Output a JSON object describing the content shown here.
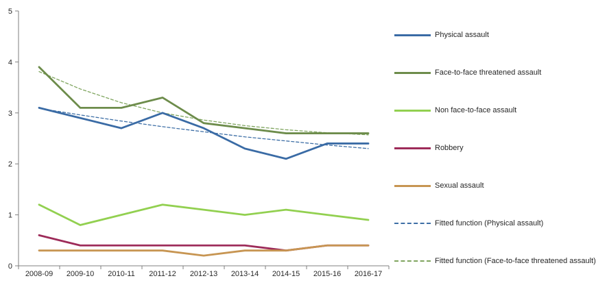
{
  "chart_data": {
    "type": "line",
    "title": "",
    "xlabel": "",
    "ylabel": "",
    "grid": false,
    "legend_position": "right",
    "ylim": [
      0,
      5
    ],
    "yticks": [
      0,
      1,
      2,
      3,
      4,
      5
    ],
    "y_tick_labels": [
      "0",
      "1",
      "2",
      "3",
      "4",
      "5"
    ],
    "categories": [
      "2008-09",
      "2009-10",
      "2010-11",
      "2011-12",
      "2012-13",
      "2013-14",
      "2014-15",
      "2015-16",
      "2016-17"
    ],
    "series": [
      {
        "name": "Physical assault",
        "key": "physical-assault",
        "style": "solid",
        "color": "#3A6BA5",
        "values": [
          3.1,
          2.9,
          2.7,
          3.0,
          2.7,
          2.3,
          2.1,
          2.4,
          2.4
        ]
      },
      {
        "name": "Face-to-face threatened assault",
        "key": "face-to-face-threatened-assault",
        "style": "solid",
        "color": "#6D8C4B",
        "values": [
          3.9,
          3.1,
          3.1,
          3.3,
          2.8,
          2.7,
          2.6,
          2.6,
          2.6
        ]
      },
      {
        "name": "Non face-to-face assault",
        "key": "non-face-to-face-assault",
        "style": "solid",
        "color": "#92D050",
        "values": [
          1.2,
          0.8,
          1.0,
          1.2,
          1.1,
          1.0,
          1.1,
          1.0,
          0.9
        ]
      },
      {
        "name": "Robbery",
        "key": "robbery",
        "style": "solid",
        "color": "#9D2B59",
        "values": [
          0.6,
          0.4,
          0.4,
          0.4,
          0.4,
          0.4,
          0.3,
          0.4,
          0.4
        ]
      },
      {
        "name": "Sexual assault",
        "key": "sexual-assault",
        "style": "solid",
        "color": "#C79552",
        "values": [
          0.3,
          0.3,
          0.3,
          0.3,
          0.2,
          0.3,
          0.3,
          0.4,
          0.4
        ]
      },
      {
        "name": "Fitted function (Physical assault)",
        "key": "fitted-physical-assault",
        "style": "dashed",
        "color": "#3E6FA6",
        "values": [
          3.09,
          2.96,
          2.84,
          2.73,
          2.63,
          2.53,
          2.45,
          2.37,
          2.3
        ]
      },
      {
        "name": "Fitted function (Face-to-face threatened assault)",
        "key": "fitted-face-to-face-threatened-assault",
        "style": "dashed",
        "color": "#7FA55F",
        "values": [
          3.81,
          3.47,
          3.2,
          3.0,
          2.86,
          2.75,
          2.67,
          2.61,
          2.57
        ]
      }
    ]
  },
  "axis_color": "#7F7F7F"
}
